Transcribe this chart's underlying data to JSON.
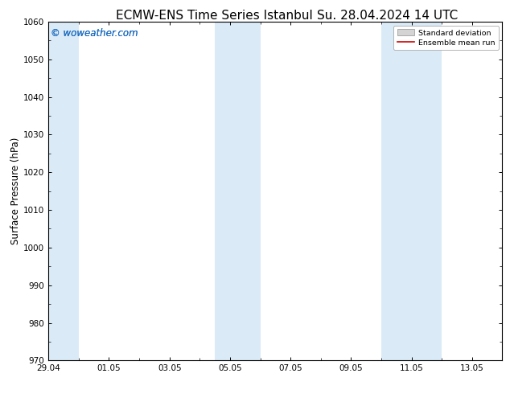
{
  "title_left": "ECMW-ENS Time Series Istanbul",
  "title_right": "Su. 28.04.2024 14 UTC",
  "ylabel": "Surface Pressure (hPa)",
  "ylim": [
    970,
    1060
  ],
  "yticks": [
    970,
    980,
    990,
    1000,
    1010,
    1020,
    1030,
    1040,
    1050,
    1060
  ],
  "xlim": [
    0,
    15
  ],
  "xtick_labels": [
    "29.04",
    "01.05",
    "03.05",
    "05.05",
    "07.05",
    "09.05",
    "11.05",
    "13.05"
  ],
  "xtick_positions_days": [
    0,
    2,
    4,
    6,
    8,
    10,
    12,
    14
  ],
  "shaded_bands": [
    {
      "start_day": 0.0,
      "end_day": 1.0
    },
    {
      "start_day": 5.5,
      "end_day": 7.0
    },
    {
      "start_day": 11.0,
      "end_day": 13.0
    }
  ],
  "shade_color": "#daeaf7",
  "background_color": "#ffffff",
  "plot_bg_color": "#ffffff",
  "watermark_text": "© woweather.com",
  "watermark_color": "#1a6abf",
  "legend_std_label": "Standard deviation",
  "legend_mean_label": "Ensemble mean run",
  "legend_std_facecolor": "#d4d4d4",
  "legend_std_edgecolor": "#aaaaaa",
  "legend_mean_color": "#cc0000",
  "title_fontsize": 11,
  "tick_fontsize": 7.5,
  "ylabel_fontsize": 8.5,
  "watermark_fontsize": 8.5
}
